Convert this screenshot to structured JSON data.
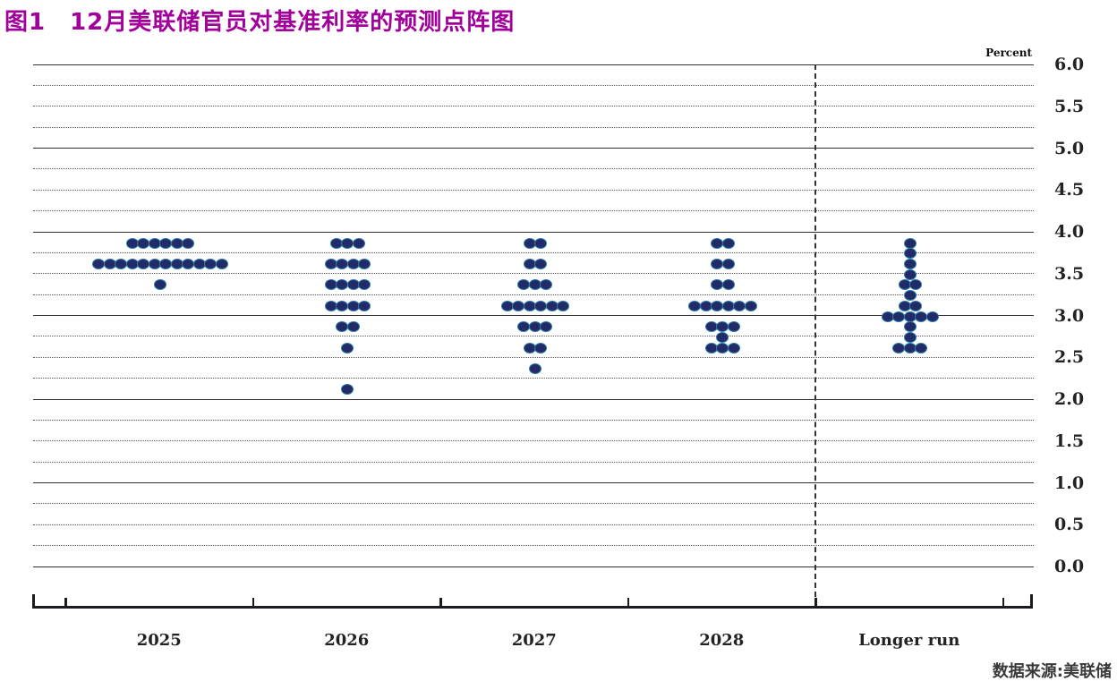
{
  "title": "图1　12月美联储官员对基准利率的预测点阵图",
  "source": "数据来源:美联储",
  "colors": {
    "title": "#A1009B",
    "dot_fill": "#232a68",
    "dot_edge": "#2b7ca6",
    "grid_major": "#2d2d2d",
    "grid_minor": "#5a5a5a",
    "axis": "#1b1b22"
  },
  "axis": {
    "unit_label": "Percent",
    "y_tick_labels": [
      "6.0",
      "5.5",
      "5.0",
      "4.5",
      "4.0",
      "3.5",
      "3.0",
      "2.5",
      "2.0",
      "1.5",
      "1.0",
      "0.5",
      "0.0"
    ]
  },
  "chart_data": {
    "type": "scatter",
    "subtype": "fomc-dot-plot",
    "title": "图1　12月美联储官员对基准利率的预测点阵图",
    "ylabel": "Percent",
    "ylim": [
      0.0,
      6.0
    ],
    "y_grid_step": 0.25,
    "y_label_step": 0.5,
    "grid": "on",
    "categories": [
      "2025",
      "2026",
      "2027",
      "2028",
      "Longer run"
    ],
    "series": [
      {
        "category": "2025",
        "dots": [
          {
            "rate": 3.875,
            "count": 6
          },
          {
            "rate": 3.625,
            "count": 12
          },
          {
            "rate": 3.375,
            "count": 1
          }
        ]
      },
      {
        "category": "2026",
        "dots": [
          {
            "rate": 3.875,
            "count": 3
          },
          {
            "rate": 3.625,
            "count": 4
          },
          {
            "rate": 3.375,
            "count": 4
          },
          {
            "rate": 3.125,
            "count": 4
          },
          {
            "rate": 2.875,
            "count": 2
          },
          {
            "rate": 2.625,
            "count": 1
          },
          {
            "rate": 2.125,
            "count": 1
          }
        ]
      },
      {
        "category": "2027",
        "dots": [
          {
            "rate": 3.875,
            "count": 2
          },
          {
            "rate": 3.625,
            "count": 2
          },
          {
            "rate": 3.375,
            "count": 3
          },
          {
            "rate": 3.125,
            "count": 6
          },
          {
            "rate": 2.875,
            "count": 3
          },
          {
            "rate": 2.625,
            "count": 2
          },
          {
            "rate": 2.375,
            "count": 1
          }
        ]
      },
      {
        "category": "2028",
        "dots": [
          {
            "rate": 3.875,
            "count": 2
          },
          {
            "rate": 3.625,
            "count": 2
          },
          {
            "rate": 3.375,
            "count": 2
          },
          {
            "rate": 3.125,
            "count": 6
          },
          {
            "rate": 2.875,
            "count": 3
          },
          {
            "rate": 2.75,
            "count": 1
          },
          {
            "rate": 2.625,
            "count": 3
          }
        ]
      },
      {
        "category": "Longer run",
        "dots": [
          {
            "rate": 3.875,
            "count": 1
          },
          {
            "rate": 3.75,
            "count": 1
          },
          {
            "rate": 3.625,
            "count": 1
          },
          {
            "rate": 3.5,
            "count": 1
          },
          {
            "rate": 3.375,
            "count": 2
          },
          {
            "rate": 3.25,
            "count": 1
          },
          {
            "rate": 3.125,
            "count": 2
          },
          {
            "rate": 3.0,
            "count": 5
          },
          {
            "rate": 2.875,
            "count": 1
          },
          {
            "rate": 2.75,
            "count": 1
          },
          {
            "rate": 2.625,
            "count": 3
          }
        ]
      }
    ]
  }
}
